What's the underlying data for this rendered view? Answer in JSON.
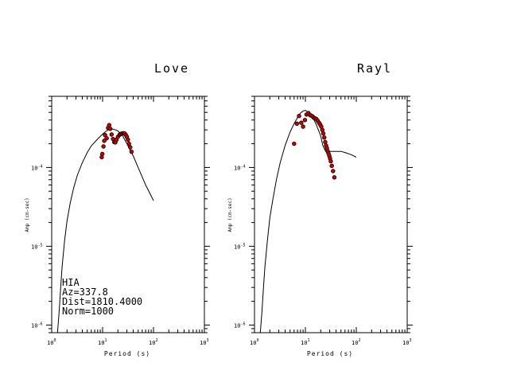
{
  "chart_data": [
    {
      "type": "scatter",
      "title": "Love",
      "xlabel": "Period (s)",
      "ylabel": "Amp (cm-sec)",
      "xscale": "log",
      "yscale": "log",
      "xlim": [
        1,
        1000
      ],
      "ylim": [
        8e-07,
        0.0008
      ],
      "x_ticks": [
        {
          "base": "10",
          "exp": "0"
        },
        {
          "base": "10",
          "exp": "1"
        },
        {
          "base": "10",
          "exp": "2"
        },
        {
          "base": "10",
          "exp": "3"
        }
      ],
      "y_ticks": [
        {
          "base": "10",
          "exp": "-6",
          "value": 1e-06
        },
        {
          "base": "10",
          "exp": "-5",
          "value": 1e-05
        },
        {
          "base": "10",
          "exp": "-4",
          "value": 0.0001
        }
      ],
      "annotations": [
        "HIA",
        "Az=337.8",
        "Dist=1810.4000",
        "Norm=1000"
      ],
      "series": [
        {
          "kind": "line",
          "x": [
            1.3,
            1.4,
            1.5,
            1.6,
            1.8,
            2.0,
            2.3,
            2.7,
            3.2,
            4,
            5,
            6,
            8,
            10,
            12,
            15,
            18,
            20,
            25,
            30,
            40,
            50,
            70,
            100
          ],
          "y": [
            8e-07,
            1.5e-06,
            3e-06,
            5.5e-06,
            1.2e-05,
            2.1e-05,
            3.5e-05,
            5.5e-05,
            8e-05,
            0.000115,
            0.000155,
            0.000188,
            0.00023,
            0.000265,
            0.000292,
            0.00031,
            0.0003,
            0.00029,
            0.00025,
            0.0002,
            0.00014,
            0.0001,
            6e-05,
            3.8e-05
          ]
        },
        {
          "kind": "points",
          "x": [
            9.6,
            9.9,
            10.4,
            10.8,
            11.2,
            12.0,
            12.8,
            13.5,
            14.2,
            15.0,
            16.0,
            17.0,
            17.8,
            18.8,
            20.0,
            21.5,
            22.5,
            24.0,
            25.5,
            27.0,
            28.5,
            30.0,
            31.5,
            33.0,
            35.0,
            37.0
          ],
          "y": [
            0.000135,
            0.000148,
            0.000185,
            0.000218,
            0.000258,
            0.000235,
            0.000318,
            0.000345,
            0.00031,
            0.000262,
            0.00023,
            0.00021,
            0.000208,
            0.000225,
            0.000245,
            0.00026,
            0.000265,
            0.00027,
            0.000272,
            0.00027,
            0.00026,
            0.000245,
            0.000225,
            0.0002,
            0.00018,
            0.000158
          ]
        }
      ]
    },
    {
      "type": "scatter",
      "title": "Rayl",
      "xlabel": "Period (s)",
      "ylabel": "Amp (cm-sec)",
      "xscale": "log",
      "yscale": "log",
      "xlim": [
        1,
        1000
      ],
      "ylim": [
        8e-07,
        0.0008
      ],
      "x_ticks": [
        {
          "base": "10",
          "exp": "0"
        },
        {
          "base": "10",
          "exp": "1"
        },
        {
          "base": "10",
          "exp": "2"
        },
        {
          "base": "10",
          "exp": "3"
        }
      ],
      "y_ticks": [
        {
          "base": "10",
          "exp": "-6",
          "value": 1e-06
        },
        {
          "base": "10",
          "exp": "-5",
          "value": 1e-05
        },
        {
          "base": "10",
          "exp": "-4",
          "value": 0.0001
        }
      ],
      "series": [
        {
          "kind": "line",
          "x": [
            1.3,
            1.4,
            1.5,
            1.6,
            1.8,
            2.0,
            2.3,
            2.7,
            3.2,
            4,
            5,
            6,
            7,
            8,
            9,
            10,
            12,
            14,
            16,
            18,
            20,
            22,
            25,
            30,
            40,
            50,
            60,
            80,
            100
          ],
          "y": [
            8e-07,
            1.5e-06,
            3e-06,
            5.5e-06,
            1.2e-05,
            2.3e-05,
            4e-05,
            7e-05,
            0.000115,
            0.00019,
            0.00028,
            0.00036,
            0.00043,
            0.00049,
            0.00052,
            0.00053,
            0.00049,
            0.00043,
            0.00036,
            0.0003,
            0.00025,
            0.00019,
            0.00016,
            0.00016,
            0.00016,
            0.00016,
            0.000155,
            0.000145,
            0.000135
          ]
        },
        {
          "kind": "points",
          "x": [
            6.0,
            6.8,
            7.5,
            8.3,
            9.0,
            9.8,
            10.5,
            11.5,
            12.5,
            13.5,
            14.5,
            15.5,
            16.5,
            17.5,
            18.5,
            19.5,
            20.5,
            21.5,
            22.5,
            23.5,
            24.5,
            25.5,
            26.5,
            27.5,
            28.5,
            29.5,
            30.5,
            31.5,
            33.0,
            35.0,
            37.0
          ],
          "y": [
            0.0002,
            0.00036,
            0.00045,
            0.00037,
            0.00033,
            0.0004,
            0.00047,
            0.00049,
            0.00046,
            0.00045,
            0.00043,
            0.00042,
            0.00041,
            0.00039,
            0.00037,
            0.00035,
            0.00033,
            0.0003,
            0.00027,
            0.00024,
            0.00021,
            0.00019,
            0.000175,
            0.00016,
            0.00015,
            0.00014,
            0.00013,
            0.00012,
            0.000105,
            9e-05,
            7.5e-05
          ]
        }
      ]
    }
  ],
  "colors": {
    "marker_fill": "#cc0000",
    "marker_stroke": "#000000",
    "line": "#000000"
  }
}
